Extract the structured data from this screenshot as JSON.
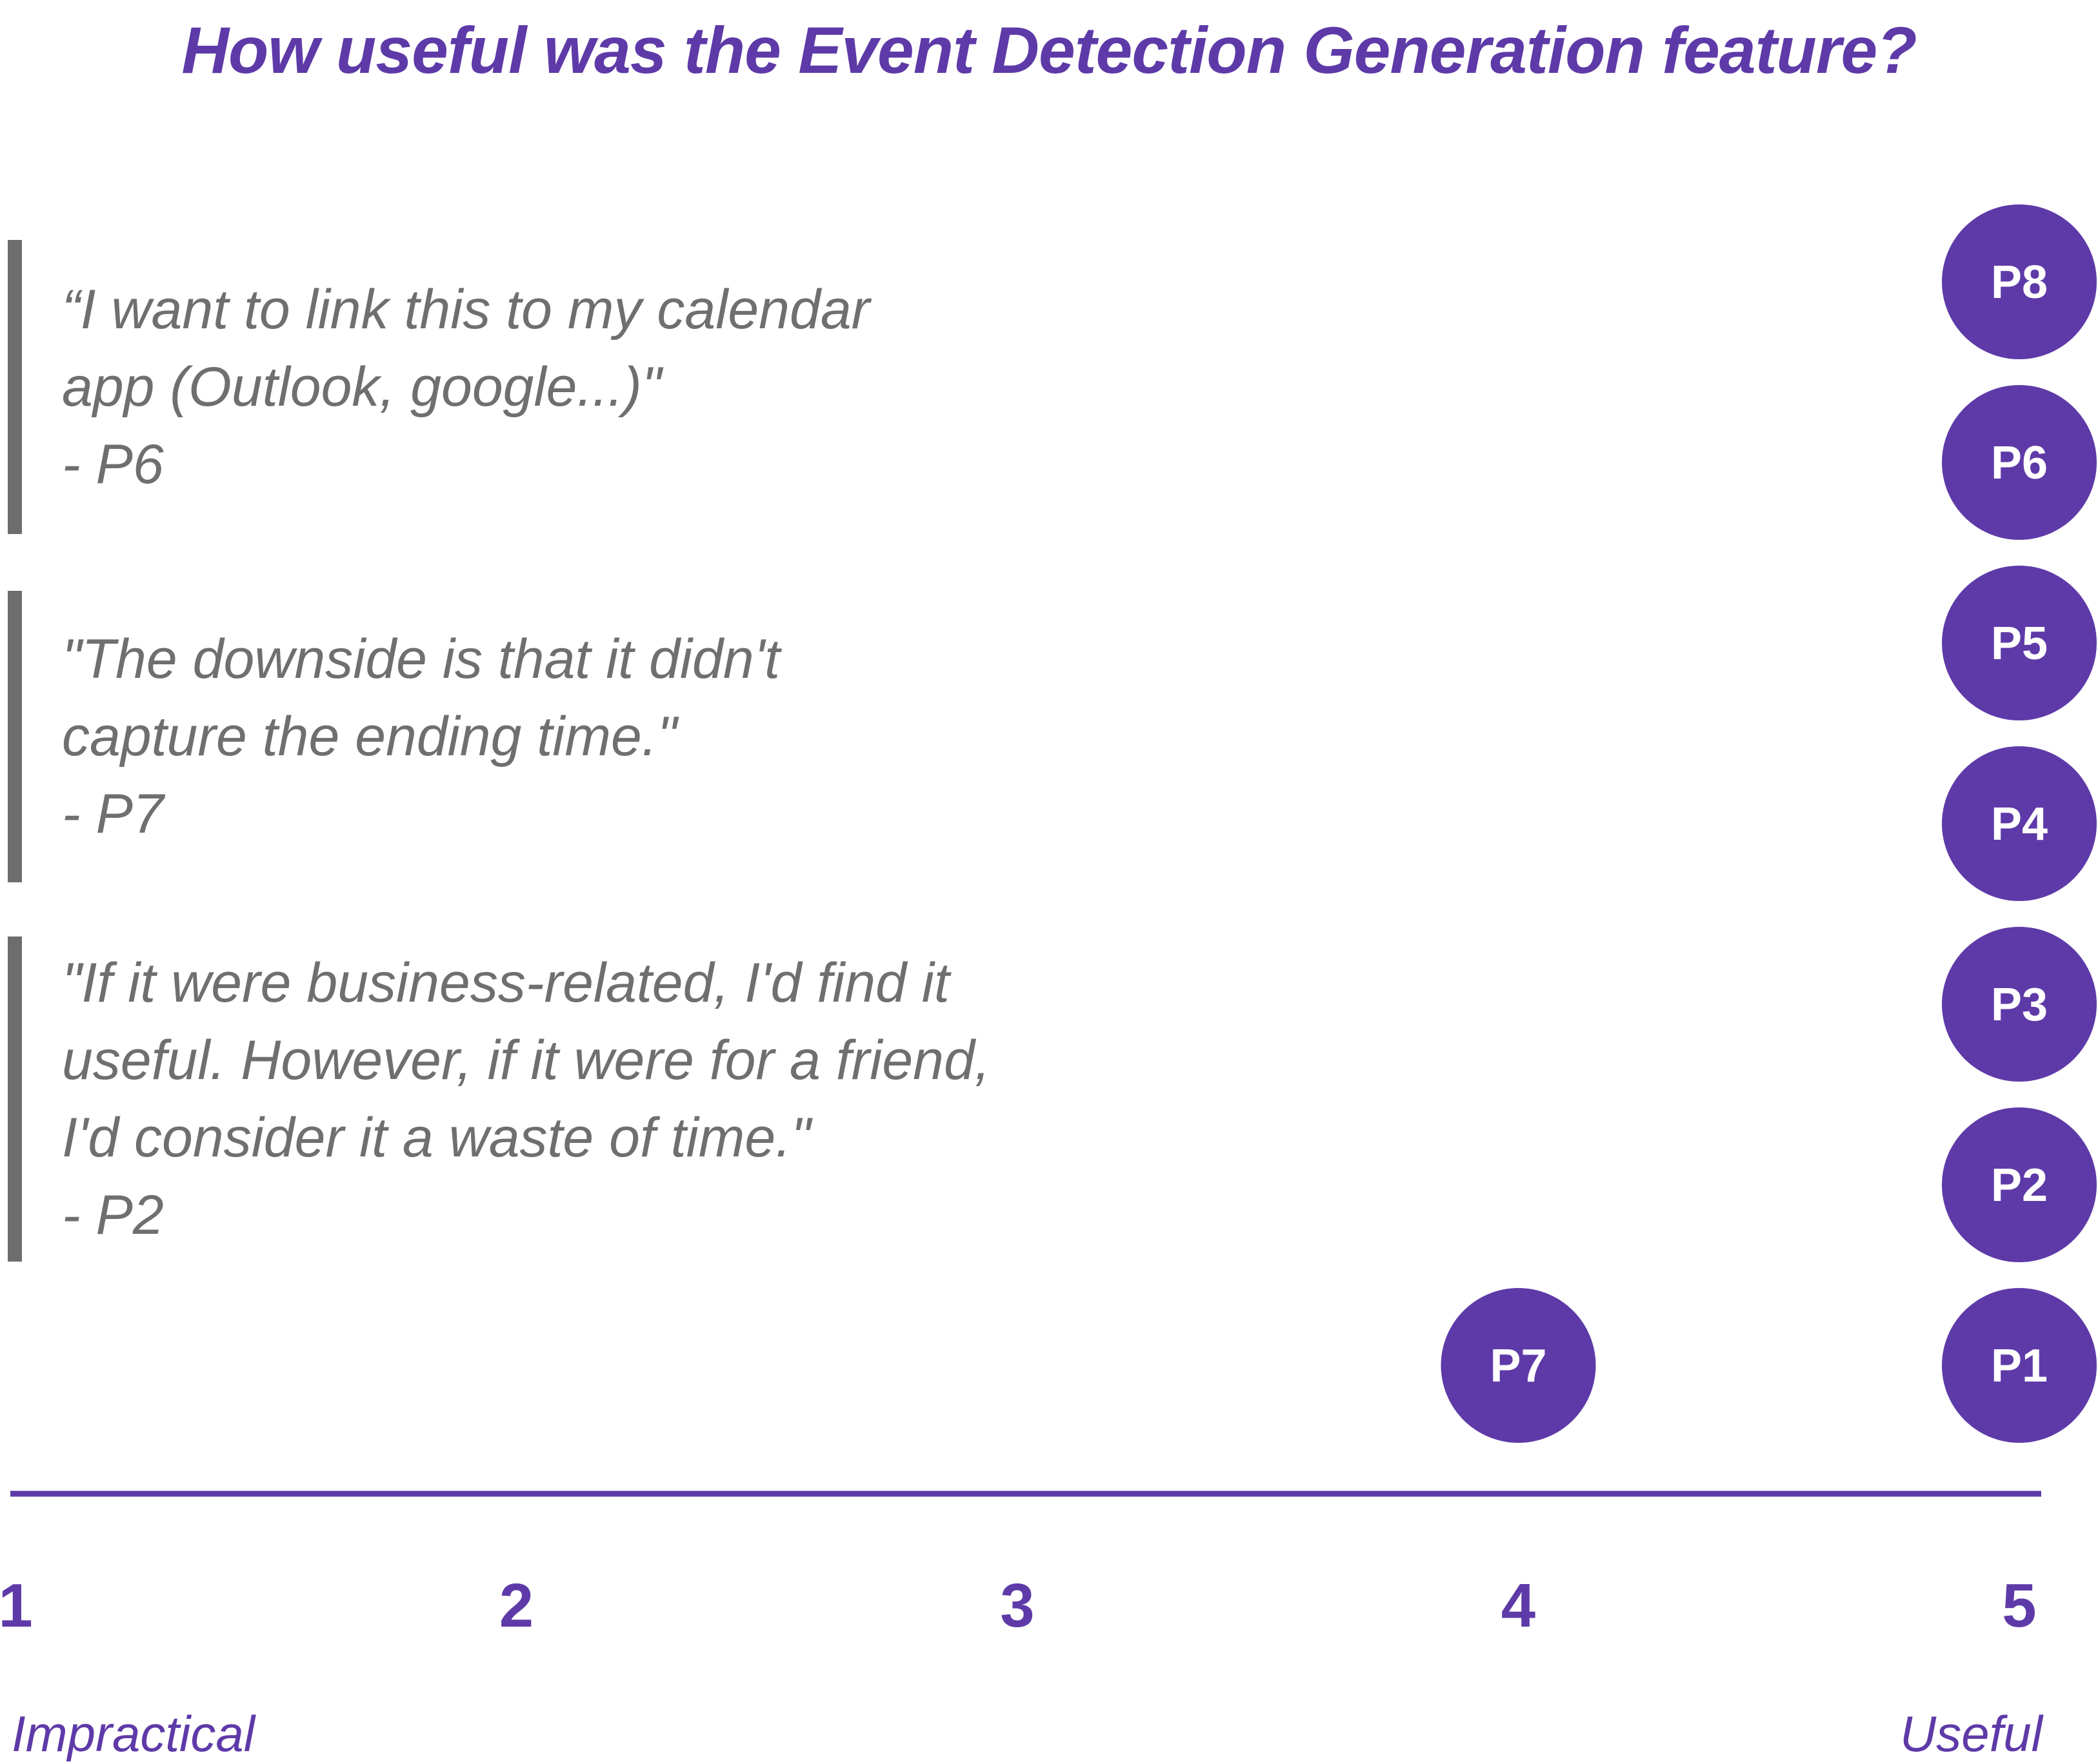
{
  "chart_data": {
    "type": "scatter",
    "title": "How useful was the Event Detection Generation feature?",
    "x_ticks": [
      "1",
      "2",
      "3",
      "4",
      "5"
    ],
    "xlim": [
      1,
      5
    ],
    "scale_labels": {
      "low": "Impractical",
      "high": "Useful"
    },
    "points": [
      {
        "label": "P1",
        "x": 5
      },
      {
        "label": "P2",
        "x": 5
      },
      {
        "label": "P3",
        "x": 5
      },
      {
        "label": "P4",
        "x": 5
      },
      {
        "label": "P5",
        "x": 5
      },
      {
        "label": "P6",
        "x": 5
      },
      {
        "label": "P8",
        "x": 5
      },
      {
        "label": "P7",
        "x": 4
      }
    ],
    "quotes": [
      {
        "lines": [
          "“I want to link this to my calendar",
          "app (Outlook, google...)\"",
          "- P6"
        ]
      },
      {
        "lines": [
          "\"The downside is that it didn't",
          "capture the ending time.\"",
          "- P7"
        ]
      },
      {
        "lines": [
          "\"If it were business-related, I'd find it",
          "useful. However, if it were for a friend,",
          "I'd consider it a waste of time.\"",
          "- P2"
        ]
      }
    ],
    "colors": {
      "accent": "#5e3aa8",
      "quote_text": "#6f6f6f",
      "quote_bar": "#6d6d6d",
      "point_label": "#ffffff"
    }
  }
}
